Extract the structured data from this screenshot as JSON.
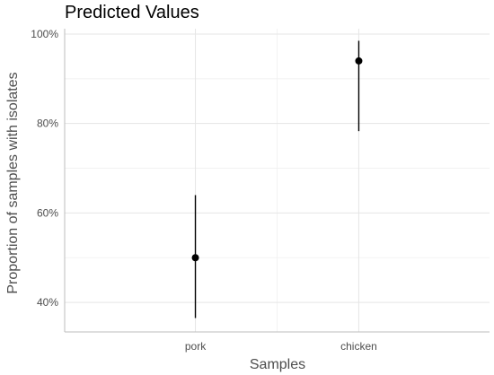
{
  "chart_data": {
    "type": "scatter",
    "title": "Predicted Values",
    "xlabel": "Samples",
    "ylabel": "Proportion of samples with isolates",
    "categories": [
      "pork",
      "chicken"
    ],
    "values": [
      0.5,
      0.94
    ],
    "ci_low": [
      0.365,
      0.783
    ],
    "ci_high": [
      0.64,
      0.985
    ],
    "ylim": [
      0.334,
      1.012
    ],
    "yticks": [
      0.4,
      0.6,
      0.8,
      1.0
    ],
    "ytick_labels": [
      "40%",
      "60%",
      "80%",
      "100%"
    ],
    "grid": true,
    "legend": "none",
    "colors": {
      "point": "#000000",
      "grid": "#e5e5e5",
      "text": "#4d4d4d"
    }
  }
}
